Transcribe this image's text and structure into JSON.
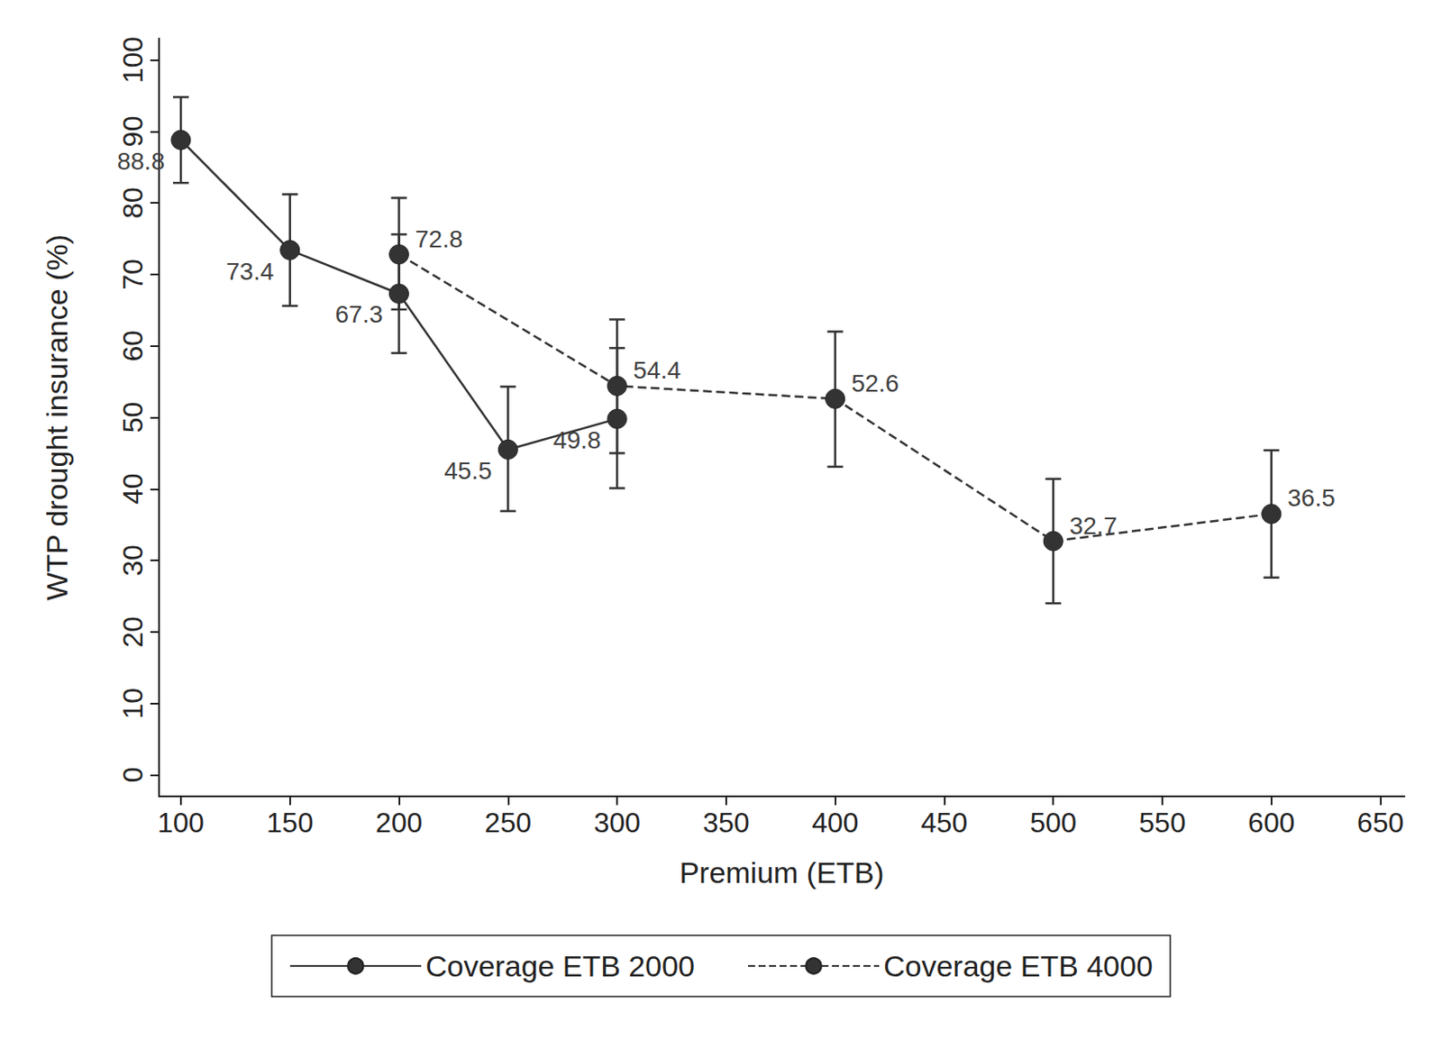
{
  "chart_data": {
    "type": "line",
    "xlabel": "Premium (ETB)",
    "ylabel": "WTP drought insurance (%)",
    "xlim": [
      90,
      661
    ],
    "xticks": [
      100,
      150,
      200,
      250,
      300,
      350,
      400,
      450,
      500,
      550,
      600,
      650
    ],
    "ylim": [
      -3,
      103
    ],
    "yticks": [
      0,
      10,
      20,
      30,
      40,
      50,
      60,
      70,
      80,
      90,
      100
    ],
    "grid": false,
    "legend": "bottom",
    "data_labels": true,
    "series": [
      {
        "name": "Coverage ETB 2000",
        "color": "#333333",
        "marker": "circle",
        "line_style": "solid",
        "x": [
          100,
          150,
          200,
          250,
          300
        ],
        "values": [
          88.8,
          73.4,
          67.3,
          45.5,
          49.8
        ],
        "error_low": [
          82.8,
          65.6,
          59.0,
          36.9,
          40.1
        ],
        "error_high": [
          94.8,
          81.2,
          75.6,
          54.3,
          59.7
        ]
      },
      {
        "name": "Coverage ETB 4000",
        "color": "#333333",
        "marker": "circle",
        "line_style": "dashed",
        "x": [
          200,
          300,
          400,
          500,
          600
        ],
        "values": [
          72.8,
          54.4,
          52.6,
          32.7,
          36.5
        ],
        "error_low": [
          65.1,
          45.0,
          43.1,
          24.0,
          27.6
        ],
        "error_high": [
          80.7,
          63.7,
          62.0,
          41.4,
          45.4
        ]
      }
    ]
  }
}
